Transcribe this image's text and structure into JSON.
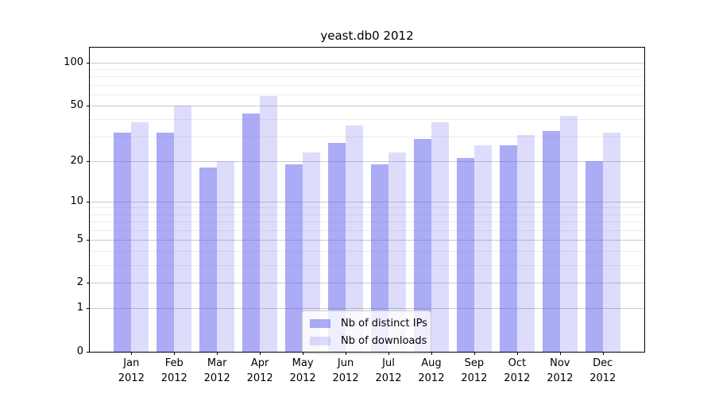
{
  "title": "yeast.db0 2012",
  "chart_data": {
    "type": "bar",
    "title": "yeast.db0 2012",
    "categories": [
      "Jan 2012",
      "Feb 2012",
      "Mar 2012",
      "Apr 2012",
      "May 2012",
      "Jun 2012",
      "Jul 2012",
      "Aug 2012",
      "Sep 2012",
      "Oct 2012",
      "Nov 2012",
      "Dec 2012"
    ],
    "series": [
      {
        "name": "Nb of distinct IPs",
        "color": "rgba(102,102,238,0.55)",
        "values": [
          32,
          32,
          18,
          44,
          19,
          27,
          19,
          29,
          21,
          26,
          33,
          20
        ]
      },
      {
        "name": "Nb of downloads",
        "color": "rgba(102,102,238,0.22)",
        "values": [
          38,
          50,
          20,
          58,
          23,
          36,
          23,
          38,
          26,
          31,
          42,
          32
        ]
      }
    ],
    "xlabel": "",
    "ylabel": "",
    "yscale": "log1p",
    "ylim": [
      0,
      128
    ],
    "ytick_values": [
      100,
      50,
      20,
      10,
      5,
      2,
      1,
      0
    ],
    "minor_grid_values": [
      3,
      4,
      6,
      7,
      8,
      9,
      30,
      40,
      60,
      70,
      80,
      90
    ],
    "grid": true,
    "legend_position": "lower center"
  }
}
